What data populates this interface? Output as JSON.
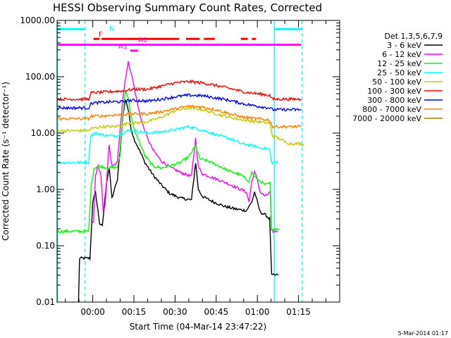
{
  "chart_data": {
    "type": "line",
    "title": "HESSI Observing Summary Count Rates, Corrected",
    "xlabel": "Start Time (04-Mar-14 23:47:22)",
    "ylabel": "Corrected Count Rate (s⁻¹ detector⁻¹)",
    "yscale": "log",
    "ylim": [
      0.01,
      1000
    ],
    "xlim_minutes": [
      -13,
      90
    ],
    "x_ticks": [
      {
        "label": "00:00",
        "min": 0
      },
      {
        "label": "00:15",
        "min": 15
      },
      {
        "label": "00:30",
        "min": 30
      },
      {
        "label": "00:45",
        "min": 45
      },
      {
        "label": "01:00",
        "min": 60
      },
      {
        "label": "01:15",
        "min": 75
      }
    ],
    "y_ticks": [
      {
        "label": "0.01",
        "value": 0.01
      },
      {
        "label": "0.10",
        "value": 0.1
      },
      {
        "label": "1.00",
        "value": 1
      },
      {
        "label": "10.00",
        "value": 10
      },
      {
        "label": "100.00",
        "value": 100
      },
      {
        "label": "1000.00",
        "value": 1000
      }
    ],
    "legend_header": "Det 1,3,5,6,7,9",
    "legend_position": "right",
    "series": [
      {
        "name": "3 - 6 keV",
        "color": "#000000",
        "points": [
          [
            -5.2,
            0.01
          ],
          [
            -4.8,
            0.06
          ],
          [
            -1,
            0.06
          ],
          [
            0,
            0.6
          ],
          [
            1,
            0.9
          ],
          [
            2.5,
            0.25
          ],
          [
            3.5,
            0.22
          ],
          [
            5,
            1.3
          ],
          [
            6,
            2.4
          ],
          [
            7,
            0.7
          ],
          [
            9,
            1.5
          ],
          [
            10,
            5
          ],
          [
            11,
            20
          ],
          [
            12,
            40
          ],
          [
            13,
            25
          ],
          [
            14,
            12
          ],
          [
            15,
            8
          ],
          [
            17,
            5
          ],
          [
            19,
            3
          ],
          [
            22,
            1.8
          ],
          [
            25,
            1.2
          ],
          [
            28,
            0.85
          ],
          [
            32,
            0.7
          ],
          [
            36,
            0.65
          ],
          [
            37.5,
            3
          ],
          [
            38.5,
            1.0
          ],
          [
            40,
            0.75
          ],
          [
            44,
            0.6
          ],
          [
            48,
            0.5
          ],
          [
            52,
            0.45
          ],
          [
            56,
            0.42
          ],
          [
            58,
            0.6
          ],
          [
            59,
            0.9
          ],
          [
            60,
            0.6
          ],
          [
            61,
            0.4
          ],
          [
            63,
            0.35
          ],
          [
            64.5,
            0.3
          ],
          [
            65.2,
            0.03
          ],
          [
            67.5,
            0.03
          ]
        ]
      },
      {
        "name": "6 - 12 keV",
        "color": "#ff00ff",
        "points": [
          [
            -0.3,
            0.25
          ],
          [
            0.3,
            0.26
          ],
          [
            1,
            1.8
          ],
          [
            2,
            2.6
          ],
          [
            3,
            1.8
          ],
          [
            3.8,
            0.4
          ],
          [
            4.5,
            0.5
          ],
          [
            5.5,
            3
          ],
          [
            6,
            6
          ],
          [
            7,
            2.5
          ],
          [
            9,
            3
          ],
          [
            10,
            12
          ],
          [
            11,
            40
          ],
          [
            12,
            100
          ],
          [
            13,
            180
          ],
          [
            14,
            120
          ],
          [
            15,
            70
          ],
          [
            16.5,
            30
          ],
          [
            18,
            15
          ],
          [
            20,
            8
          ],
          [
            22,
            5
          ],
          [
            25,
            3.2
          ],
          [
            28,
            2.5
          ],
          [
            32,
            2.0
          ],
          [
            36,
            1.7
          ],
          [
            37.5,
            8
          ],
          [
            38.5,
            2.5
          ],
          [
            40,
            1.9
          ],
          [
            44,
            1.6
          ],
          [
            48,
            1.35
          ],
          [
            52,
            1.1
          ],
          [
            56,
            0.9
          ],
          [
            57,
            0.6
          ],
          [
            58,
            1.4
          ],
          [
            59,
            2.0
          ],
          [
            60,
            1.5
          ],
          [
            61,
            0.9
          ],
          [
            63,
            0.75
          ],
          [
            64.7,
            0.9
          ],
          [
            65.2,
            0.18
          ],
          [
            67.5,
            0.18
          ]
        ]
      },
      {
        "name": "12 - 25 keV",
        "color": "#00ff00",
        "points": [
          [
            -13,
            0.18
          ],
          [
            -1.5,
            0.18
          ],
          [
            -0.5,
            1.2
          ],
          [
            0.5,
            2.4
          ],
          [
            2,
            2.6
          ],
          [
            4,
            2.5
          ],
          [
            6,
            2.4
          ],
          [
            9,
            2.5
          ],
          [
            10,
            4
          ],
          [
            11,
            20
          ],
          [
            12,
            60
          ],
          [
            13,
            40
          ],
          [
            14,
            20
          ],
          [
            15,
            12
          ],
          [
            17,
            7
          ],
          [
            19,
            4
          ],
          [
            22,
            2.6
          ],
          [
            25,
            2.4
          ],
          [
            28,
            2.6
          ],
          [
            32,
            3.0
          ],
          [
            35,
            3.8
          ],
          [
            37.5,
            6
          ],
          [
            39,
            3.5
          ],
          [
            42,
            3.2
          ],
          [
            46,
            2.6
          ],
          [
            50,
            2.1
          ],
          [
            54,
            1.8
          ],
          [
            57,
            1.4
          ],
          [
            58,
            2.0
          ],
          [
            60,
            1.5
          ],
          [
            63,
            1.2
          ],
          [
            64.7,
            1.3
          ],
          [
            65.2,
            0.2
          ],
          [
            68,
            0.2
          ]
        ]
      },
      {
        "name": "25 - 50 keV",
        "color": "#00ffff",
        "points": [
          [
            -13,
            3
          ],
          [
            -1.5,
            3
          ],
          [
            -0.7,
            9
          ],
          [
            1,
            10
          ],
          [
            5,
            9
          ],
          [
            9,
            9
          ],
          [
            11,
            10
          ],
          [
            13,
            11
          ],
          [
            15,
            11
          ],
          [
            20,
            10
          ],
          [
            25,
            10.5
          ],
          [
            30,
            11.5
          ],
          [
            35,
            13
          ],
          [
            38,
            12
          ],
          [
            42,
            10.5
          ],
          [
            46,
            9
          ],
          [
            50,
            8
          ],
          [
            54,
            6.5
          ],
          [
            58,
            6
          ],
          [
            61,
            5.5
          ],
          [
            64.5,
            5.2
          ],
          [
            65.2,
            3
          ],
          [
            67.5,
            3
          ]
        ]
      },
      {
        "name": "50 - 100 keV",
        "color": "#c8c800",
        "points": [
          [
            -13,
            11
          ],
          [
            -1.5,
            11
          ],
          [
            -0.5,
            12
          ],
          [
            3,
            13
          ],
          [
            8,
            13
          ],
          [
            11,
            14
          ],
          [
            13,
            15
          ],
          [
            15,
            15
          ],
          [
            20,
            16
          ],
          [
            25,
            19
          ],
          [
            30,
            25
          ],
          [
            35,
            28
          ],
          [
            40,
            26
          ],
          [
            45,
            22
          ],
          [
            50,
            19
          ],
          [
            55,
            17
          ],
          [
            60,
            16
          ],
          [
            64.5,
            15
          ],
          [
            65.5,
            9
          ],
          [
            68,
            8
          ],
          [
            70,
            7
          ],
          [
            72,
            6.5
          ],
          [
            76,
            6.5
          ],
          [
            77,
            6
          ]
        ]
      },
      {
        "name": "100 - 300 keV",
        "color": "#ff0000",
        "points": [
          [
            -13,
            40
          ],
          [
            -1.5,
            40
          ],
          [
            -0.5,
            52
          ],
          [
            3,
            53
          ],
          [
            8,
            55
          ],
          [
            11,
            56
          ],
          [
            13,
            58
          ],
          [
            15,
            60
          ],
          [
            20,
            60
          ],
          [
            25,
            68
          ],
          [
            30,
            78
          ],
          [
            35,
            82
          ],
          [
            40,
            78
          ],
          [
            45,
            70
          ],
          [
            50,
            62
          ],
          [
            55,
            54
          ],
          [
            60,
            50
          ],
          [
            64.5,
            47
          ],
          [
            65.5,
            40
          ],
          [
            76,
            40
          ]
        ]
      },
      {
        "name": "300 - 800 keV",
        "color": "#0000ff",
        "points": [
          [
            -13,
            28
          ],
          [
            -1.5,
            28
          ],
          [
            -0.5,
            34
          ],
          [
            3,
            35
          ],
          [
            8,
            36
          ],
          [
            11,
            36
          ],
          [
            13,
            38
          ],
          [
            15,
            38
          ],
          [
            20,
            37
          ],
          [
            25,
            40
          ],
          [
            30,
            44
          ],
          [
            35,
            47
          ],
          [
            40,
            46
          ],
          [
            45,
            42
          ],
          [
            50,
            38
          ],
          [
            55,
            33
          ],
          [
            60,
            30
          ],
          [
            64.5,
            28
          ],
          [
            65.5,
            26
          ],
          [
            76,
            26
          ]
        ]
      },
      {
        "name": "800 - 7000 keV",
        "color": "#ff8000",
        "points": [
          [
            -13,
            18
          ],
          [
            -1.5,
            18
          ],
          [
            -0.5,
            20
          ],
          [
            3,
            20
          ],
          [
            8,
            21
          ],
          [
            11,
            21
          ],
          [
            13,
            22
          ],
          [
            15,
            22
          ],
          [
            20,
            22
          ],
          [
            25,
            24
          ],
          [
            30,
            27
          ],
          [
            35,
            30
          ],
          [
            40,
            29
          ],
          [
            45,
            26
          ],
          [
            50,
            22
          ],
          [
            55,
            19
          ],
          [
            60,
            18
          ],
          [
            64.5,
            17
          ],
          [
            65.5,
            13
          ],
          [
            76,
            13
          ]
        ]
      },
      {
        "name": "7000 - 20000 keV",
        "color": "#a08000",
        "points": []
      }
    ],
    "annotations": [
      {
        "text": "N",
        "color": "#00ffff"
      },
      {
        "text": "F",
        "color": "#ff0000"
      },
      {
        "text": "A0",
        "color": "#ff00ff"
      },
      {
        "text": "A1",
        "color": "#ff00ff"
      }
    ],
    "bars": {
      "N": {
        "color": "#00ffff",
        "value": 700,
        "segments": [
          [
            -13,
            -2.8
          ],
          [
            66.2,
            76.3
          ]
        ]
      },
      "F": {
        "color": "#ff0000",
        "value": 470,
        "segments": [
          [
            0.3,
            2.5
          ],
          [
            3.2,
            31.5
          ],
          [
            34,
            39
          ],
          [
            40.5,
            44.5
          ],
          [
            54,
            56.5
          ],
          [
            58,
            59.5
          ]
        ]
      },
      "A0": {
        "color": "#ff00ff",
        "value": 370,
        "segments": [
          [
            -13,
            76
          ]
        ]
      },
      "A1": {
        "color": "#ff00ff",
        "value": 290,
        "segments": [
          [
            13.7,
            16.5
          ]
        ]
      }
    },
    "vlines": [
      {
        "color": "#00ffff",
        "style": "solid",
        "x": -12.8
      },
      {
        "color": "#00ffff",
        "style": "dashed",
        "x": -2.8
      },
      {
        "color": "#00ffff",
        "style": "solid",
        "x": 66.2
      },
      {
        "color": "#00ffff",
        "style": "dashed",
        "x": 76.3
      }
    ]
  },
  "footer_stamp": "5-Mar-2014 01:17"
}
